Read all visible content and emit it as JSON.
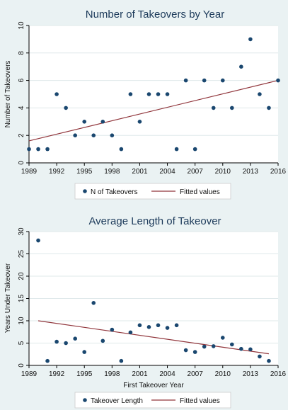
{
  "colors": {
    "background": "#eaf2f3",
    "plot_bg": "#ffffff",
    "grid": "#dfe8ea",
    "dots": "#1a476f",
    "fit_line": "#90353b",
    "title": "#1c3a5a"
  },
  "chart_data": [
    {
      "type": "scatter",
      "title": "Number of Takeovers by Year",
      "xlabel": "",
      "ylabel": "Number of Takeovers",
      "xlim": [
        1989,
        2016
      ],
      "ylim": [
        0,
        10
      ],
      "xticks": [
        "1989",
        "1992",
        "1995",
        "1998",
        "2001",
        "2004",
        "2007",
        "2010",
        "2013",
        "2016"
      ],
      "yticks": [
        "0",
        "2",
        "4",
        "6",
        "8",
        "10"
      ],
      "grid": true,
      "legend_position": "bottom",
      "series": [
        {
          "name": "N of Takeovers",
          "kind": "points",
          "x": [
            1989,
            1990,
            1991,
            1992,
            1993,
            1994,
            1995,
            1996,
            1997,
            1998,
            1999,
            2000,
            2001,
            2002,
            2003,
            2004,
            2005,
            2006,
            2007,
            2008,
            2009,
            2010,
            2011,
            2012,
            2013,
            2014,
            2015,
            2016
          ],
          "y": [
            1,
            1,
            1,
            5,
            4,
            2,
            3,
            2,
            3,
            2,
            1,
            5,
            3,
            5,
            5,
            5,
            1,
            6,
            1,
            6,
            4,
            6,
            4,
            7,
            9,
            5,
            4,
            6
          ]
        },
        {
          "name": "Fitted values",
          "kind": "line",
          "x": [
            1989,
            2016
          ],
          "y": [
            1.6,
            6.0
          ]
        }
      ]
    },
    {
      "type": "scatter",
      "title": "Average Length of Takeover",
      "xlabel": "First Takeover Year",
      "ylabel": "Years Under Takeover",
      "xlim": [
        1989,
        2016
      ],
      "ylim": [
        0,
        30
      ],
      "xticks": [
        "1989",
        "1992",
        "1995",
        "1998",
        "2001",
        "2004",
        "2007",
        "2010",
        "2013",
        "2016"
      ],
      "yticks": [
        "0",
        "5",
        "10",
        "15",
        "20",
        "25",
        "30"
      ],
      "grid": true,
      "legend_position": "bottom",
      "series": [
        {
          "name": "Takeover Length",
          "kind": "points",
          "x": [
            1990,
            1991,
            1992,
            1993,
            1994,
            1995,
            1996,
            1997,
            1998,
            1999,
            2000,
            2001,
            2002,
            2003,
            2004,
            2005,
            2006,
            2007,
            2008,
            2009,
            2010,
            2011,
            2012,
            2013,
            2014,
            2015
          ],
          "y": [
            28,
            1,
            5.3,
            5,
            6,
            3,
            14,
            5.5,
            8,
            1,
            7.4,
            9,
            8.6,
            9,
            8.4,
            9,
            3.4,
            3,
            4.2,
            4.3,
            6.2,
            4.7,
            3.7,
            3.6,
            2,
            1
          ]
        },
        {
          "name": "Fitted values",
          "kind": "line",
          "x": [
            1990,
            2015
          ],
          "y": [
            10.0,
            2.6
          ]
        }
      ]
    }
  ]
}
